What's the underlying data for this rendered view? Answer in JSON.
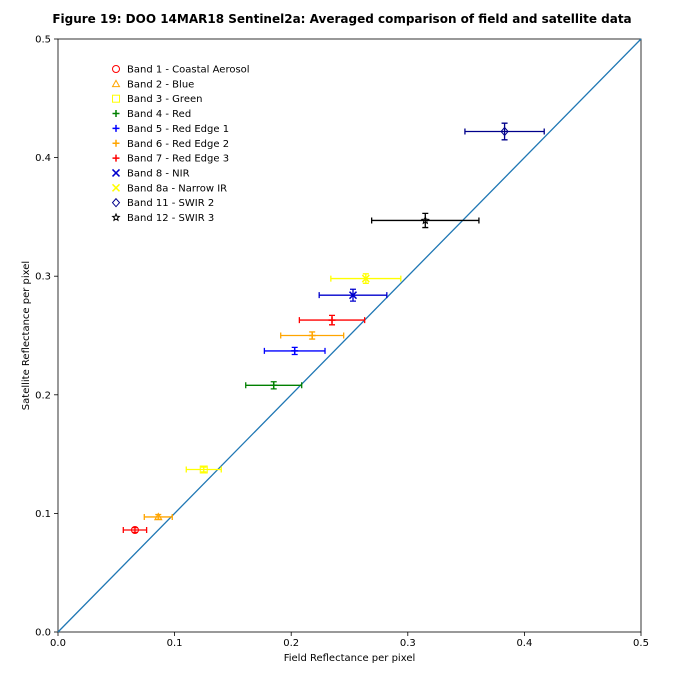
{
  "chart_data": {
    "type": "scatter",
    "title": "Figure 19: DOO 14MAR18  Sentinel2a: Averaged comparison of field and satellite data",
    "xlabel": "Field Reflectance per pixel",
    "ylabel": "Satellite Reflectance per pixel",
    "xlim": [
      0.0,
      0.5
    ],
    "ylim": [
      0.0,
      0.5
    ],
    "xticks": [
      "0.0",
      "0.1",
      "0.2",
      "0.3",
      "0.4",
      "0.5"
    ],
    "yticks": [
      "0.0",
      "0.1",
      "0.2",
      "0.3",
      "0.4",
      "0.5"
    ],
    "grid": false,
    "legend_position": "top-left",
    "reference_line": {
      "from": [
        0.0,
        0.0
      ],
      "to": [
        0.5,
        0.5
      ],
      "color": "#1f77b4"
    },
    "series": [
      {
        "name": "Band 1 - Coastal Aerosol",
        "marker": "circle",
        "color": "#ff0000",
        "x": 0.066,
        "y": 0.086,
        "xerr": 0.01,
        "yerr": 0.002
      },
      {
        "name": "Band 2 - Blue",
        "marker": "triangle",
        "color": "#ffa500",
        "x": 0.086,
        "y": 0.097,
        "xerr": 0.012,
        "yerr": 0.002
      },
      {
        "name": "Band 3 - Green",
        "marker": "square",
        "color": "#ffff00",
        "x": 0.125,
        "y": 0.137,
        "xerr": 0.015,
        "yerr": 0.002
      },
      {
        "name": "Band 4 - Red",
        "marker": "plus",
        "color": "#008000",
        "x": 0.185,
        "y": 0.208,
        "xerr": 0.024,
        "yerr": 0.003
      },
      {
        "name": "Band 5 - Red Edge 1",
        "marker": "plus",
        "color": "#0000ff",
        "x": 0.203,
        "y": 0.237,
        "xerr": 0.026,
        "yerr": 0.003
      },
      {
        "name": "Band 6 - Red Edge 2",
        "marker": "plus",
        "color": "#ffa500",
        "x": 0.218,
        "y": 0.25,
        "xerr": 0.027,
        "yerr": 0.003
      },
      {
        "name": "Band 7 - Red Edge 3",
        "marker": "plus",
        "color": "#ff0000",
        "x": 0.235,
        "y": 0.263,
        "xerr": 0.028,
        "yerr": 0.004
      },
      {
        "name": "Band 8 - NIR",
        "marker": "x",
        "color": "#0000cd",
        "x": 0.253,
        "y": 0.284,
        "xerr": 0.029,
        "yerr": 0.005
      },
      {
        "name": "Band 8a - Narrow IR",
        "marker": "x",
        "color": "#ffff00",
        "x": 0.264,
        "y": 0.298,
        "xerr": 0.03,
        "yerr": 0.004
      },
      {
        "name": "Band 11 - SWIR 2",
        "marker": "diamond",
        "color": "#00008b",
        "x": 0.383,
        "y": 0.422,
        "xerr": 0.034,
        "yerr": 0.007
      },
      {
        "name": "Band 12 - SWIR 3",
        "marker": "star",
        "color": "#000000",
        "x": 0.315,
        "y": 0.347,
        "xerr": 0.046,
        "yerr": 0.006
      }
    ]
  }
}
